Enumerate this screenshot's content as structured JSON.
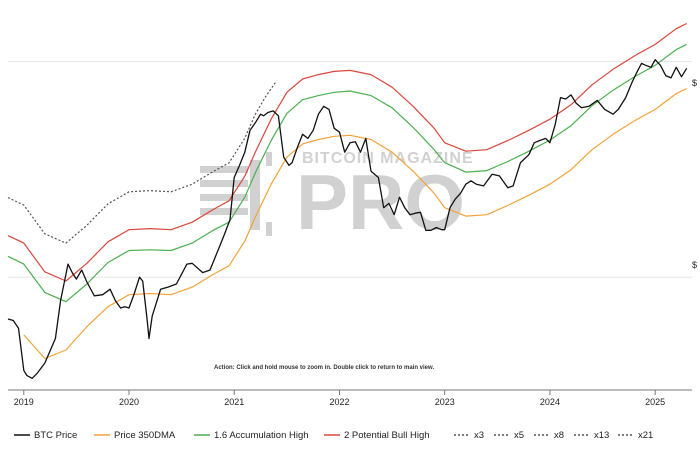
{
  "colors": {
    "btc": "#111111",
    "dma350": "#f2a33a",
    "acc16": "#4caf50",
    "bull2": "#d9473c",
    "mult": "#555555",
    "grid": "#e6e6e6",
    "watermark": "#9a9a9a"
  },
  "watermark": {
    "line1": "BITCOIN MAGAZINE",
    "line2": "PRO"
  },
  "action_text": "Action: Click and hold mouse to zoom in.  Double click to return to main view.",
  "y_axis_labels": [
    "$",
    "$"
  ],
  "chart_data": {
    "type": "line",
    "title": "",
    "xlabel": "",
    "ylabel": "",
    "log_scale_y": true,
    "y_unit": "USD",
    "ylim": [
      3000,
      140000
    ],
    "x_ticks": [
      "2019",
      "2020",
      "2021",
      "2022",
      "2023",
      "2024",
      "2025"
    ],
    "x_range": [
      2018.85,
      2025.35
    ],
    "grid": "horizontal",
    "legend_position": "bottom",
    "series": [
      {
        "name": "BTC Price",
        "color": "#111111",
        "style": "solid",
        "x": [
          2018.85,
          2018.9,
          2018.95,
          2019.0,
          2019.03,
          2019.08,
          2019.13,
          2019.2,
          2019.3,
          2019.35,
          2019.42,
          2019.46,
          2019.5,
          2019.55,
          2019.6,
          2019.67,
          2019.75,
          2019.82,
          2019.87,
          2019.92,
          2019.96,
          2020.0,
          2020.05,
          2020.1,
          2020.13,
          2020.17,
          2020.19,
          2020.22,
          2020.3,
          2020.37,
          2020.45,
          2020.55,
          2020.6,
          2020.7,
          2020.77,
          2020.85,
          2020.9,
          2020.96,
          2021.0,
          2021.05,
          2021.1,
          2021.15,
          2021.2,
          2021.25,
          2021.28,
          2021.32,
          2021.37,
          2021.42,
          2021.47,
          2021.52,
          2021.55,
          2021.6,
          2021.65,
          2021.7,
          2021.75,
          2021.8,
          2021.85,
          2021.9,
          2021.95,
          2022.0,
          2022.05,
          2022.1,
          2022.15,
          2022.2,
          2022.25,
          2022.3,
          2022.37,
          2022.42,
          2022.47,
          2022.52,
          2022.57,
          2022.62,
          2022.67,
          2022.72,
          2022.77,
          2022.82,
          2022.87,
          2022.92,
          2022.97,
          2023.0,
          2023.05,
          2023.1,
          2023.15,
          2023.2,
          2023.25,
          2023.3,
          2023.37,
          2023.45,
          2023.52,
          2023.6,
          2023.65,
          2023.72,
          2023.8,
          2023.85,
          2023.9,
          2023.96,
          2024.0,
          2024.05,
          2024.1,
          2024.15,
          2024.2,
          2024.25,
          2024.3,
          2024.37,
          2024.45,
          2024.52,
          2024.6,
          2024.65,
          2024.72,
          2024.78,
          2024.83,
          2024.87,
          2024.91,
          2024.96,
          2025.0,
          2025.05,
          2025.1,
          2025.15,
          2025.2,
          2025.25,
          2025.3
        ],
        "y": [
          6400,
          6300,
          5800,
          3700,
          3500,
          3400,
          3600,
          4000,
          5200,
          7800,
          11500,
          10500,
          9800,
          10800,
          9500,
          8200,
          8300,
          8800,
          7800,
          7200,
          7300,
          7200,
          8400,
          10000,
          9600,
          6500,
          5200,
          6600,
          8800,
          9000,
          9300,
          11500,
          11600,
          10500,
          10800,
          13500,
          15500,
          18500,
          29000,
          33000,
          38000,
          48000,
          52000,
          57000,
          56000,
          58000,
          59000,
          56000,
          36000,
          33000,
          34000,
          40000,
          46000,
          44000,
          48000,
          57000,
          62000,
          60000,
          49000,
          47000,
          38000,
          42000,
          42500,
          38000,
          44000,
          31000,
          29000,
          21000,
          22000,
          19500,
          23500,
          21000,
          19500,
          19800,
          20000,
          16500,
          16500,
          17000,
          16600,
          16600,
          21000,
          23000,
          24500,
          27000,
          28000,
          27000,
          26500,
          30000,
          29500,
          26000,
          26500,
          34000,
          37000,
          42000,
          43000,
          44000,
          42000,
          51000,
          68000,
          67000,
          70000,
          64000,
          61000,
          62000,
          66000,
          60000,
          57000,
          60000,
          68000,
          80000,
          90000,
          98000,
          96000,
          94000,
          102000,
          96000,
          86000,
          84000,
          94000,
          85000,
          93000
        ]
      },
      {
        "name": "Price 350DMA",
        "color": "#f2a33a",
        "style": "solid",
        "x": [
          2019.0,
          2019.2,
          2019.4,
          2019.6,
          2019.8,
          2020.0,
          2020.2,
          2020.4,
          2020.6,
          2020.8,
          2020.95,
          2021.1,
          2021.2,
          2021.35,
          2021.5,
          2021.65,
          2021.8,
          2021.95,
          2022.1,
          2022.3,
          2022.5,
          2022.7,
          2022.9,
          2023.0,
          2023.2,
          2023.4,
          2023.6,
          2023.8,
          2024.0,
          2024.2,
          2024.4,
          2024.6,
          2024.8,
          2025.0,
          2025.2,
          2025.3
        ],
        "y": [
          5400,
          4200,
          4600,
          5900,
          7300,
          8300,
          8400,
          8300,
          9000,
          10300,
          11300,
          14700,
          19000,
          27000,
          36000,
          41500,
          43500,
          45000,
          45500,
          43500,
          38000,
          31000,
          24500,
          21000,
          19200,
          19500,
          21500,
          24000,
          27000,
          31500,
          39000,
          46000,
          53000,
          60000,
          71000,
          75000
        ]
      },
      {
        "name": "1.6 Accumulation High",
        "color": "#4caf50",
        "style": "solid",
        "x": [
          2018.85,
          2019.0,
          2019.2,
          2019.4,
          2019.6,
          2019.8,
          2020.0,
          2020.2,
          2020.4,
          2020.6,
          2020.8,
          2020.95,
          2021.1,
          2021.2,
          2021.35,
          2021.5,
          2021.65,
          2021.8,
          2021.95,
          2022.1,
          2022.3,
          2022.5,
          2022.7,
          2022.9,
          2023.0,
          2023.2,
          2023.4,
          2023.6,
          2023.8,
          2024.0,
          2024.2,
          2024.4,
          2024.6,
          2024.8,
          2025.0,
          2025.2,
          2025.3
        ],
        "y": [
          12500,
          11500,
          8500,
          7700,
          9300,
          11700,
          13300,
          13400,
          13300,
          14400,
          16500,
          18000,
          23500,
          30500,
          43000,
          57500,
          66500,
          69500,
          72000,
          73000,
          69500,
          61000,
          49500,
          39000,
          34000,
          30700,
          31200,
          34400,
          38400,
          43200,
          50400,
          62400,
          73600,
          84800,
          96000,
          113600,
          120000
        ]
      },
      {
        "name": "2 Potential Bull High",
        "color": "#d9473c",
        "style": "solid",
        "x": [
          2018.85,
          2019.0,
          2019.2,
          2019.4,
          2019.6,
          2019.8,
          2020.0,
          2020.2,
          2020.4,
          2020.6,
          2020.8,
          2020.95,
          2021.1,
          2021.2,
          2021.35,
          2021.5,
          2021.65,
          2021.8,
          2021.95,
          2022.1,
          2022.3,
          2022.5,
          2022.7,
          2022.9,
          2023.0,
          2023.2,
          2023.4,
          2023.6,
          2023.8,
          2024.0,
          2024.2,
          2024.4,
          2024.6,
          2024.8,
          2025.0,
          2025.2,
          2025.3
        ],
        "y": [
          15600,
          14400,
          10600,
          9600,
          11600,
          14600,
          16600,
          16800,
          16600,
          18000,
          20600,
          22600,
          29400,
          38000,
          54000,
          72000,
          83000,
          87000,
          90000,
          91000,
          87000,
          76000,
          62000,
          49000,
          42000,
          38400,
          39000,
          43000,
          48000,
          54000,
          63000,
          78000,
          92000,
          106000,
          120000,
          142000,
          150000
        ]
      },
      {
        "name": "x3",
        "color": "#555555",
        "style": "dashed",
        "x": [
          2018.85,
          2019.0,
          2019.2,
          2019.4,
          2019.6,
          2019.8,
          2020.0,
          2020.2,
          2020.4,
          2020.6,
          2020.8,
          2020.95,
          2021.1,
          2021.2,
          2021.3,
          2021.4
        ],
        "y": [
          23400,
          21600,
          15900,
          14400,
          17400,
          21900,
          24900,
          25200,
          24900,
          27000,
          30900,
          33900,
          44100,
          57000,
          69000,
          81000
        ]
      },
      {
        "name": "x5",
        "color": "#555555",
        "style": "dashed",
        "x": [],
        "y": []
      },
      {
        "name": "x8",
        "color": "#555555",
        "style": "dashed",
        "x": [],
        "y": []
      },
      {
        "name": "x13",
        "color": "#555555",
        "style": "dashed",
        "x": [],
        "y": []
      },
      {
        "name": "x21",
        "color": "#555555",
        "style": "dashed",
        "x": [],
        "y": []
      }
    ]
  }
}
